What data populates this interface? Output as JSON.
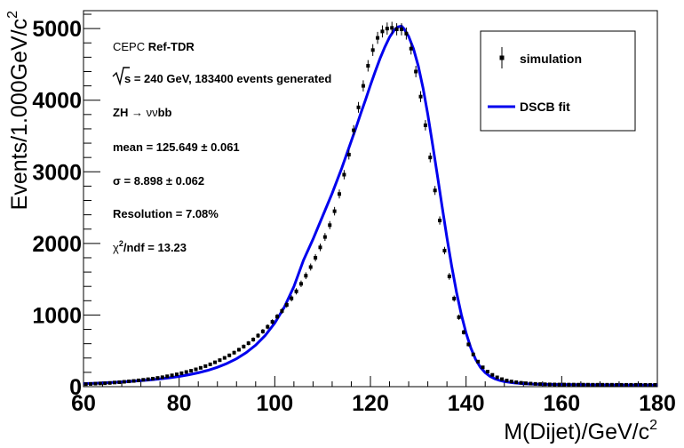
{
  "chart_data": {
    "type": "scatter",
    "xlabel": "M(Dijet)/GeV/c",
    "xlabel_sup": "2",
    "ylabel": "Events/1.000GeV/c",
    "ylabel_sup": "2",
    "xlim": [
      60,
      180
    ],
    "ylim": [
      0,
      5250
    ],
    "x_ticks": [
      60,
      80,
      100,
      120,
      140,
      160,
      180
    ],
    "y_ticks": [
      0,
      1000,
      2000,
      3000,
      4000,
      5000
    ],
    "grid": false,
    "legend_position": "top-right",
    "legend": [
      {
        "label": "simulation",
        "style": "markers"
      },
      {
        "label": "DSCB fit",
        "style": "line"
      }
    ],
    "annotations": {
      "line1_prefix": "CEPC",
      "line1_bold": "Ref-TDR",
      "line2": "s = 240 GeV, 183400 events generated",
      "line3_prefix": "ZH",
      "line3_arrow": "→",
      "line3_nu": "νν",
      "line3_suffix": "bb",
      "line4": "mean = 125.649 ± 0.061",
      "line5": "σ = 8.898 ± 0.062",
      "line6": "Resolution = 7.08%",
      "line7_prefix": "χ",
      "line7_sup": "2",
      "line7_suffix": "/ndf = 13.23"
    },
    "series": [
      {
        "name": "simulation",
        "color": "#000000",
        "x": [
          60.5,
          61.5,
          62.5,
          63.5,
          64.5,
          65.5,
          66.5,
          67.5,
          68.5,
          69.5,
          70.5,
          71.5,
          72.5,
          73.5,
          74.5,
          75.5,
          76.5,
          77.5,
          78.5,
          79.5,
          80.5,
          81.5,
          82.5,
          83.5,
          84.5,
          85.5,
          86.5,
          87.5,
          88.5,
          89.5,
          90.5,
          91.5,
          92.5,
          93.5,
          94.5,
          95.5,
          96.5,
          97.5,
          98.5,
          99.5,
          100.5,
          101.5,
          102.5,
          103.5,
          104.5,
          105.5,
          106.5,
          107.5,
          108.5,
          109.5,
          110.5,
          111.5,
          112.5,
          113.5,
          114.5,
          115.5,
          116.5,
          117.5,
          118.5,
          119.5,
          120.5,
          121.5,
          122.5,
          123.5,
          124.5,
          125.5,
          126.5,
          127.5,
          128.5,
          129.5,
          130.5,
          131.5,
          132.5,
          133.5,
          134.5,
          135.5,
          136.5,
          137.5,
          138.5,
          139.5,
          140.5,
          141.5,
          142.5,
          143.5,
          144.5,
          145.5,
          146.5,
          147.5,
          148.5,
          149.5,
          150.5,
          151.5,
          152.5,
          153.5,
          154.5,
          155.5,
          156.5,
          157.5,
          158.5,
          159.5,
          160.5,
          161.5,
          162.5,
          163.5,
          164.5,
          165.5,
          166.5,
          167.5,
          168.5,
          169.5,
          170.5,
          171.5,
          172.5,
          173.5,
          174.5,
          175.5,
          176.5,
          177.5,
          178.5,
          179.5
        ],
        "y": [
          35,
          38,
          42,
          45,
          48,
          52,
          58,
          62,
          68,
          74,
          80,
          88,
          96,
          104,
          112,
          122,
          132,
          145,
          158,
          172,
          188,
          205,
          222,
          242,
          263,
          287,
          312,
          340,
          370,
          402,
          437,
          475,
          516,
          560,
          607,
          658,
          713,
          772,
          836,
          905,
          978,
          1057,
          1142,
          1233,
          1331,
          1436,
          1549,
          1670,
          1800,
          1945,
          2090,
          2255,
          2450,
          2690,
          2960,
          3240,
          3580,
          3900,
          4200,
          4480,
          4700,
          4870,
          4960,
          5000,
          5010,
          4990,
          4990,
          4930,
          4720,
          4400,
          4050,
          3650,
          3200,
          2740,
          2320,
          1900,
          1540,
          1230,
          970,
          760,
          590,
          450,
          350,
          270,
          210,
          165,
          130,
          105,
          86,
          72,
          62,
          54,
          48,
          43,
          39,
          36,
          34,
          32,
          31,
          30,
          30,
          29,
          29,
          28,
          28,
          28,
          27,
          27,
          27,
          27,
          27,
          26,
          26,
          26,
          26,
          26,
          26,
          25,
          25,
          25
        ]
      },
      {
        "name": "DSCB fit",
        "color": "#0000ee",
        "x": [
          60,
          62,
          64,
          66,
          68,
          70,
          72,
          74,
          76,
          78,
          80,
          82,
          84,
          86,
          88,
          90,
          92,
          94,
          96,
          98,
          100,
          102,
          104,
          106,
          108,
          110,
          112,
          114,
          116,
          117,
          118,
          119,
          120,
          121,
          122,
          123,
          124,
          125,
          125.649,
          126.5,
          127,
          128,
          129,
          130,
          131,
          132,
          133,
          134,
          135,
          136,
          137,
          138,
          139,
          140,
          141,
          142,
          143,
          144,
          145,
          146,
          147,
          148,
          150,
          152,
          154,
          156,
          158,
          160,
          165,
          170,
          175,
          180
        ],
        "y": [
          43,
          47,
          53,
          59,
          66,
          74,
          84,
          95,
          108,
          124,
          143,
          166,
          194,
          228,
          271,
          324,
          390,
          474,
          580,
          715,
          888,
          1111,
          1398,
          1765,
          2060,
          2380,
          2700,
          3050,
          3430,
          3620,
          3820,
          4010,
          4210,
          4400,
          4580,
          4740,
          4880,
          4980,
          5020,
          5035,
          5000,
          4890,
          4720,
          4480,
          4170,
          3800,
          3380,
          2950,
          2510,
          2080,
          1680,
          1320,
          1010,
          750,
          540,
          380,
          270,
          195,
          145,
          110,
          87,
          71,
          52,
          42,
          36,
          33,
          31,
          29,
          27,
          25,
          24,
          23
        ]
      }
    ]
  }
}
